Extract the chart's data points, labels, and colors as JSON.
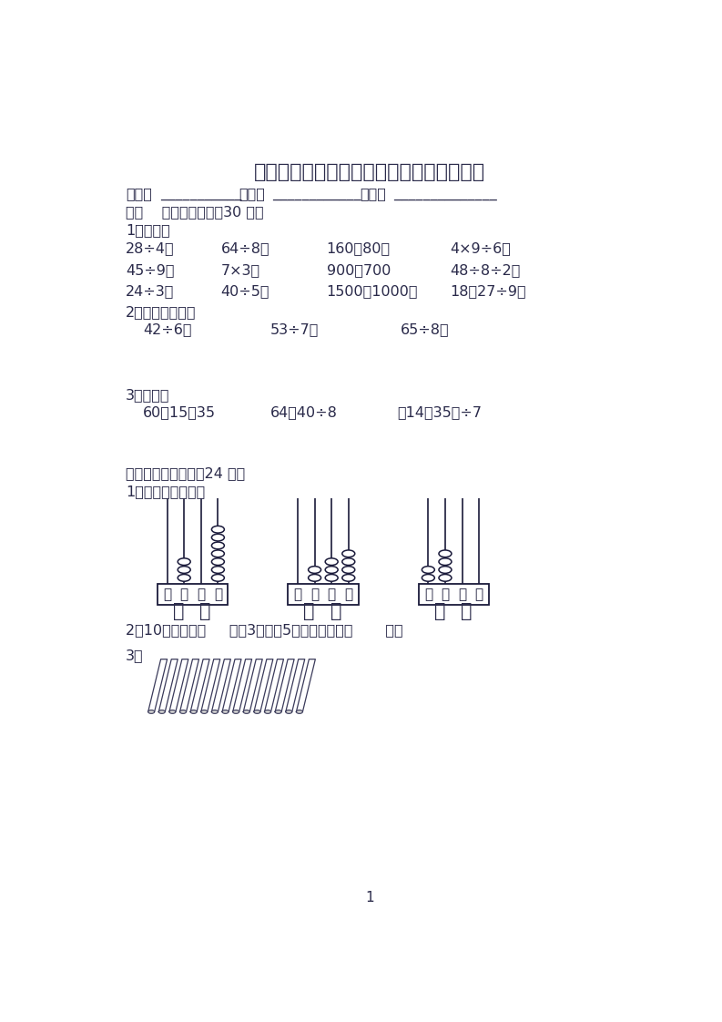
{
  "title": "部编人教版二年级数学下学期期末考试试题",
  "bg_color": "#ffffff",
  "text_color": "#2a2a4a",
  "page_number": "1",
  "name_line_parts": [
    "姓名：",
    "___________",
    "  学号：",
    "____________",
    "  分数：",
    "______________"
  ],
  "section1_title": "一、    细心算一算。（30 分）",
  "subsection1": "1、口算。",
  "row1": [
    "28÷4＝",
    "64÷8＝",
    "160－80＝",
    "4×9÷6＝"
  ],
  "row2": [
    "45÷9＝",
    "7×3＝",
    "900＋700",
    "48÷8÷2＝"
  ],
  "row3": [
    "24÷3＝",
    "40÷5＝",
    "1500－1000＝",
    "18＋27÷9＝"
  ],
  "subsection2": "2、用竖式计算。",
  "vertical_row": [
    "42÷6＝",
    "53÷7＝",
    "65÷8＝"
  ],
  "subsection3": "3、计算。",
  "calc_row": [
    "60－15－35",
    "64－40÷8",
    "（14＋35）÷7"
  ],
  "section2_title": "二、认真填一填。（24 分）",
  "subsection2_1": "1、写出下面各数。",
  "abacus_col_keys": [
    "千",
    "百",
    "十",
    "个"
  ],
  "abacus_beads": [
    {
      "千": 0,
      "百": 3,
      "十": 0,
      "个": 7
    },
    {
      "千": 0,
      "百": 2,
      "十": 3,
      "个": 4
    },
    {
      "千": 2,
      "百": 4,
      "十": 0,
      "个": 0
    }
  ],
  "subsection2_2": "2、10个一千是（     ）；3个千、5个十合起来是（       ）。",
  "subsection2_3": "3、",
  "n_sticks": 15
}
